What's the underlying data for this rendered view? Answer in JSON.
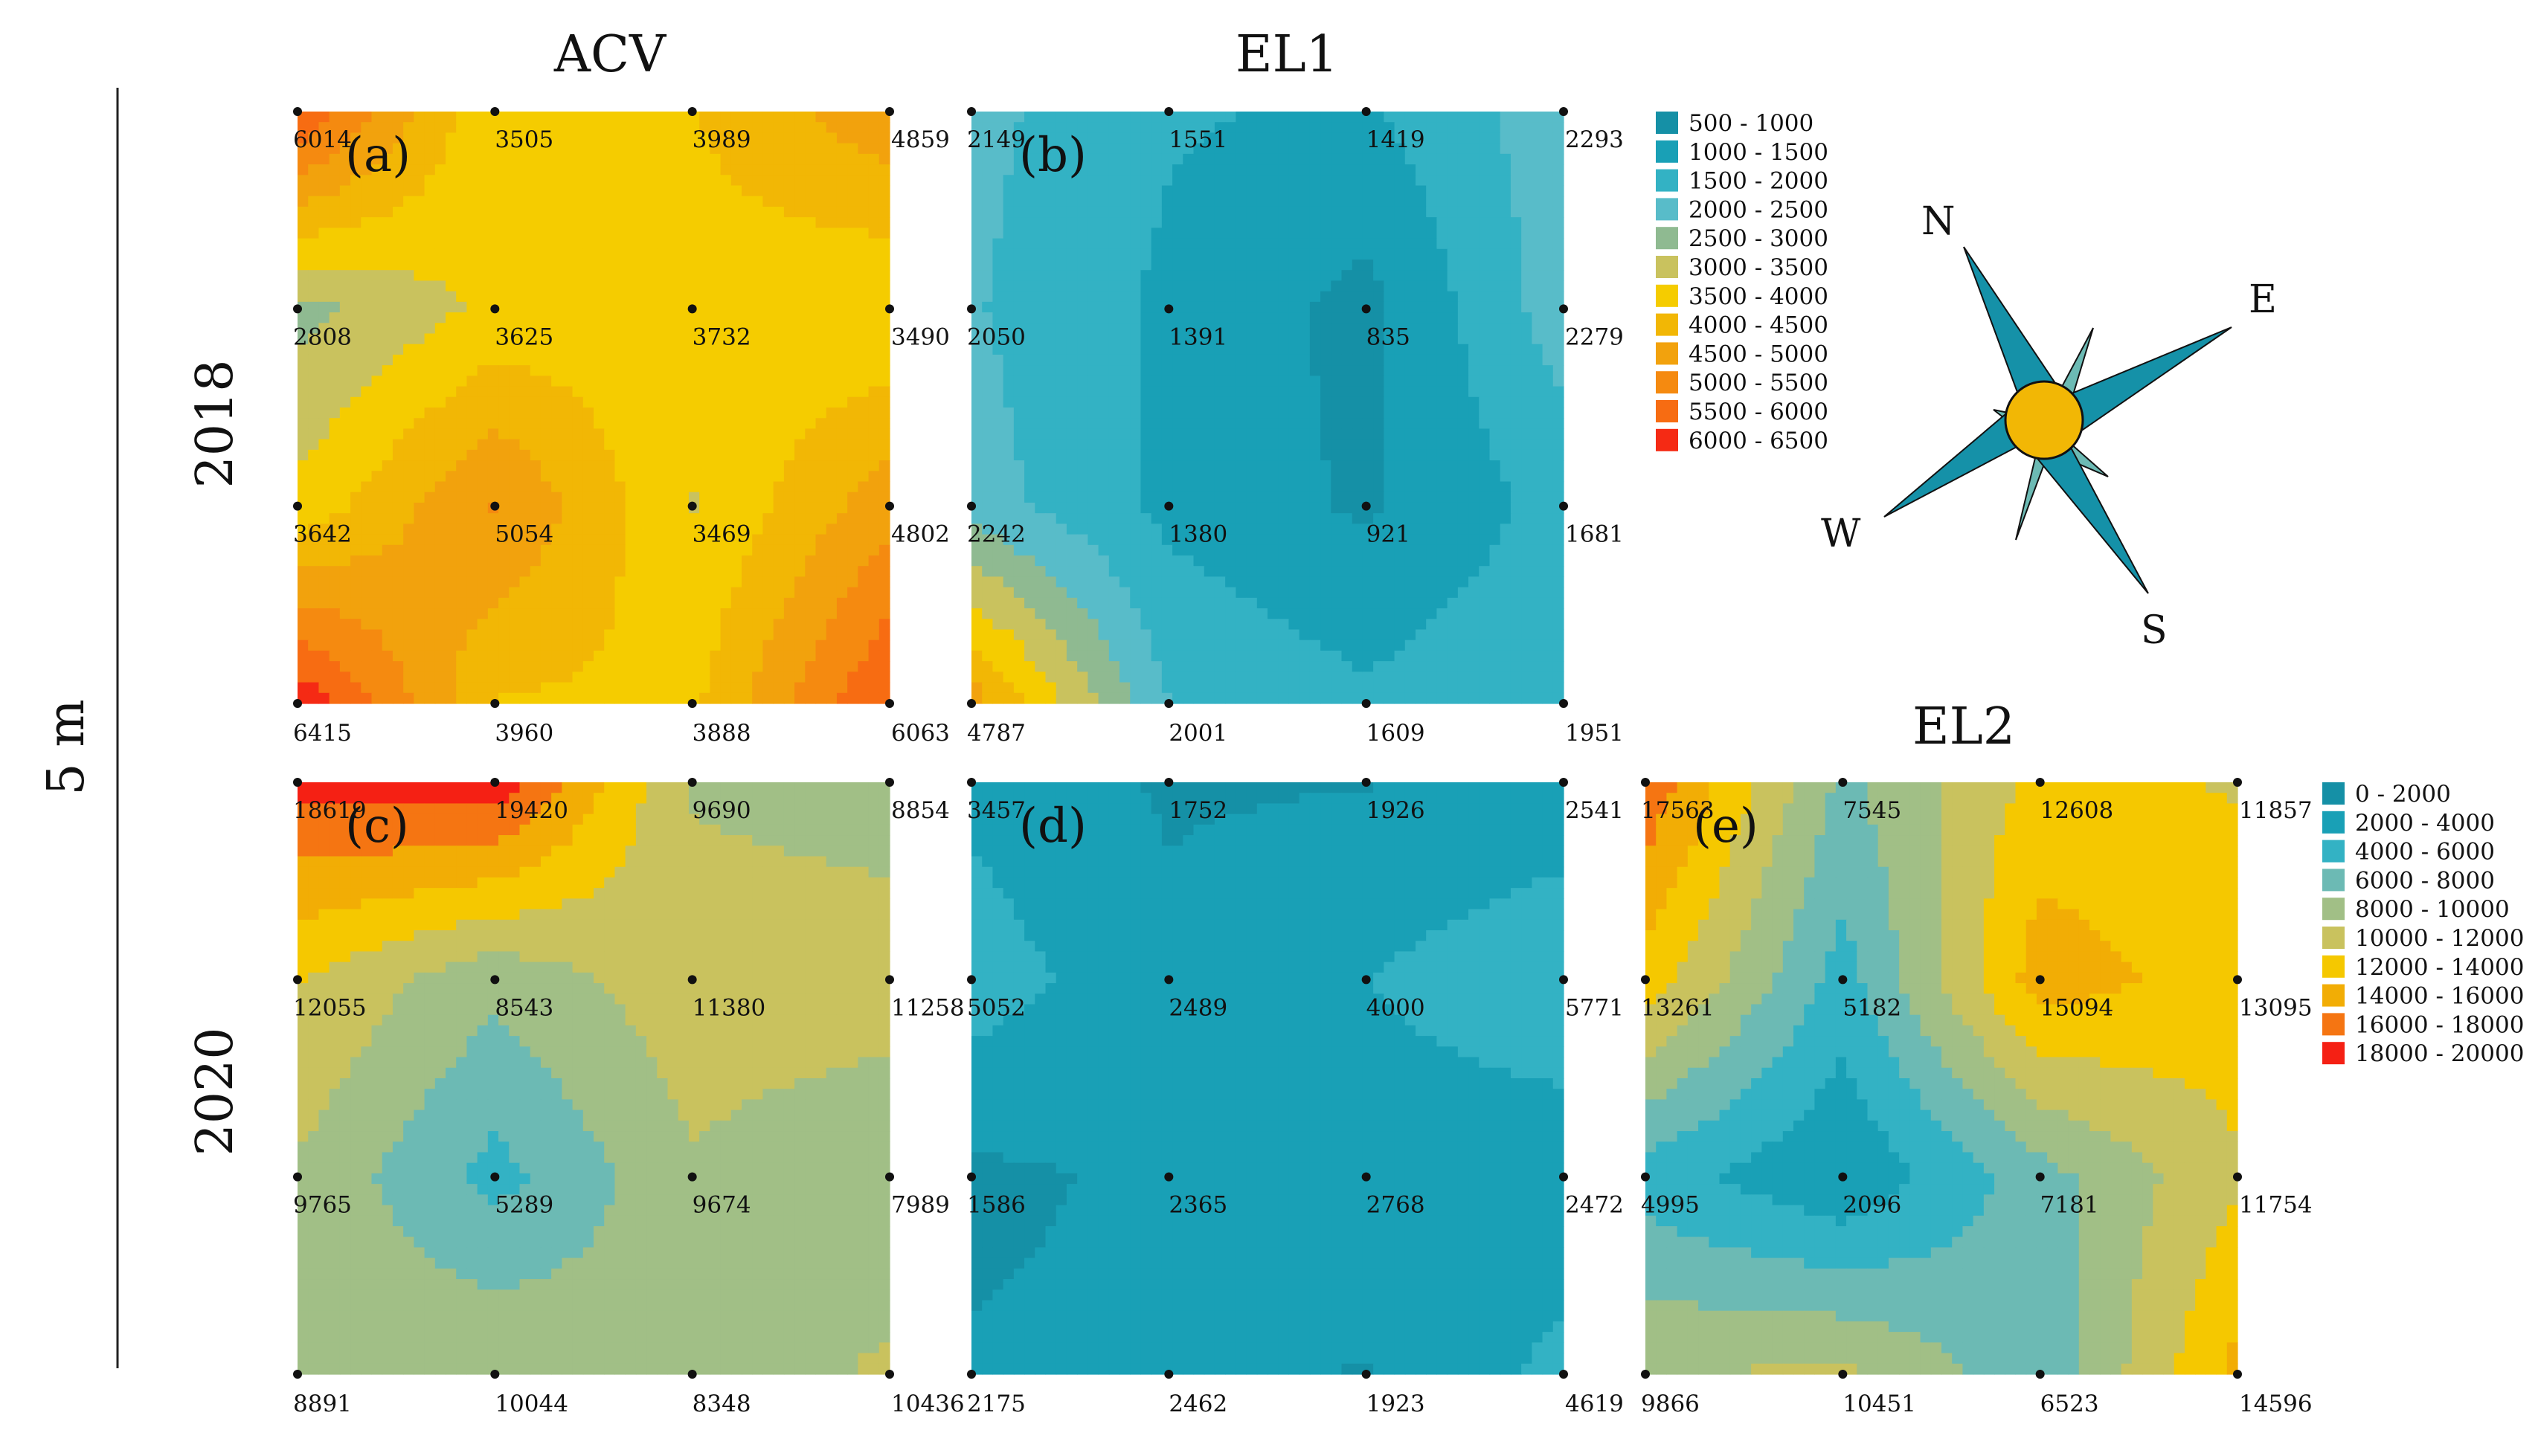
{
  "column_titles": [
    "ACV",
    "EL1",
    "EL2"
  ],
  "row_titles": [
    "2018",
    "2020"
  ],
  "scale_label": "5 m",
  "compass": {
    "N": "N",
    "E": "E",
    "S": "S",
    "W": "W",
    "ring_color": "#1591a8",
    "center_color": "#f2b705"
  },
  "legend_top": {
    "items": [
      {
        "label": "500 - 1000",
        "color": "#1590a6"
      },
      {
        "label": "1000 - 1500",
        "color": "#19a0b6"
      },
      {
        "label": "1500 - 2000",
        "color": "#33b2c4"
      },
      {
        "label": "2000 - 2500",
        "color": "#58bcc9"
      },
      {
        "label": "2500 - 3000",
        "color": "#8fba91"
      },
      {
        "label": "3000 - 3500",
        "color": "#c9c25e"
      },
      {
        "label": "3500 - 4000",
        "color": "#f5cc00"
      },
      {
        "label": "4000 - 4500",
        "color": "#f2b705"
      },
      {
        "label": "4500 - 5000",
        "color": "#f2a20d"
      },
      {
        "label": "5000 - 5500",
        "color": "#f58a10"
      },
      {
        "label": "5500 - 6000",
        "color": "#f76c12"
      },
      {
        "label": "6000 - 6500",
        "color": "#f52a14"
      }
    ]
  },
  "legend_bottom": {
    "items": [
      {
        "label": "0 - 2000",
        "color": "#1590a6"
      },
      {
        "label": "2000 - 4000",
        "color": "#19a0b6"
      },
      {
        "label": "4000 - 6000",
        "color": "#33b2c4"
      },
      {
        "label": "6000 - 8000",
        "color": "#6cbab4"
      },
      {
        "label": "8000 - 10000",
        "color": "#a1bf86"
      },
      {
        "label": "10000 - 12000",
        "color": "#c9c25e"
      },
      {
        "label": "12000 - 14000",
        "color": "#f5c800"
      },
      {
        "label": "14000 - 16000",
        "color": "#f2ad05"
      },
      {
        "label": "16000 - 18000",
        "color": "#f57512"
      },
      {
        "label": "18000 - 20000",
        "color": "#f52014"
      }
    ]
  },
  "chart_data": [
    {
      "type": "heatmap",
      "letter": "(a)",
      "column": "ACV",
      "year": "2018",
      "grid": [
        [
          6014,
          3505,
          3989,
          4859
        ],
        [
          2808,
          3625,
          3732,
          3490
        ],
        [
          3642,
          5054,
          3469,
          4802
        ],
        [
          6415,
          3960,
          3888,
          6063
        ]
      ],
      "value_range": [
        500,
        6500
      ],
      "legend": "top"
    },
    {
      "type": "heatmap",
      "letter": "(b)",
      "column": "EL1",
      "year": "2018",
      "grid": [
        [
          2149,
          1551,
          1419,
          2293
        ],
        [
          2050,
          1391,
          835,
          2279
        ],
        [
          2242,
          1380,
          921,
          1681
        ],
        [
          4787,
          2001,
          1609,
          1951
        ]
      ],
      "value_range": [
        500,
        6500
      ],
      "legend": "top"
    },
    {
      "type": "heatmap",
      "letter": "(c)",
      "column": "ACV",
      "year": "2020",
      "grid": [
        [
          18619,
          19420,
          9690,
          8854
        ],
        [
          12055,
          8543,
          11380,
          11258
        ],
        [
          9765,
          5289,
          9674,
          7989
        ],
        [
          8891,
          10044,
          8348,
          10436
        ]
      ],
      "value_range": [
        0,
        20000
      ],
      "legend": "bottom"
    },
    {
      "type": "heatmap",
      "letter": "(d)",
      "column": "EL1",
      "year": "2020",
      "grid": [
        [
          3457,
          1752,
          1926,
          2541
        ],
        [
          5052,
          2489,
          4000,
          5771
        ],
        [
          1586,
          2365,
          2768,
          2472
        ],
        [
          2175,
          2462,
          1923,
          4619
        ]
      ],
      "value_range": [
        0,
        20000
      ],
      "legend": "bottom"
    },
    {
      "type": "heatmap",
      "letter": "(e)",
      "column": "EL2",
      "year": "2020",
      "grid": [
        [
          17563,
          7545,
          12608,
          11857
        ],
        [
          13261,
          5182,
          15094,
          13095
        ],
        [
          4995,
          2096,
          7181,
          11754
        ],
        [
          9866,
          10451,
          6523,
          14596
        ]
      ],
      "value_range": [
        0,
        20000
      ],
      "legend": "bottom"
    }
  ]
}
